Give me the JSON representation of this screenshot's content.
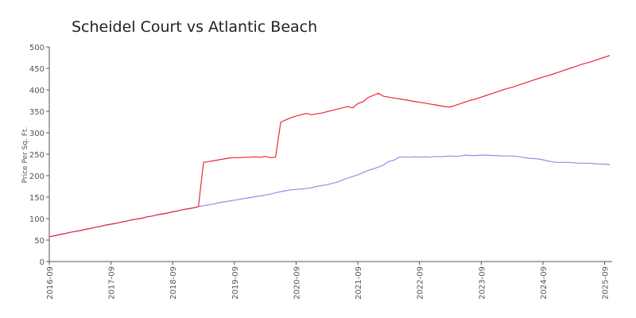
{
  "chart_data": {
    "type": "line",
    "title": "Scheidel Court vs Atlantic Beach",
    "y_label": "Price Per Sq. Ft.",
    "x": [
      "2016-09",
      "2016-10",
      "2016-11",
      "2016-12",
      "2017-01",
      "2017-02",
      "2017-03",
      "2017-04",
      "2017-05",
      "2017-06",
      "2017-07",
      "2017-08",
      "2017-09",
      "2017-10",
      "2017-11",
      "2017-12",
      "2018-01",
      "2018-02",
      "2018-03",
      "2018-04",
      "2018-05",
      "2018-06",
      "2018-07",
      "2018-08",
      "2018-09",
      "2018-10",
      "2018-11",
      "2018-12",
      "2019-01",
      "2019-02",
      "2019-03",
      "2019-04",
      "2019-05",
      "2019-06",
      "2019-07",
      "2019-08",
      "2019-09",
      "2019-10",
      "2019-11",
      "2019-12",
      "2020-01",
      "2020-02",
      "2020-03",
      "2020-04",
      "2020-05",
      "2020-06",
      "2020-07",
      "2020-08",
      "2020-09",
      "2020-10",
      "2020-11",
      "2020-12",
      "2021-01",
      "2021-02",
      "2021-03",
      "2021-04",
      "2021-05",
      "2021-06",
      "2021-07",
      "2021-08",
      "2021-09",
      "2021-10",
      "2021-11",
      "2021-12",
      "2022-01",
      "2022-02",
      "2022-03",
      "2022-04",
      "2022-05",
      "2022-06",
      "2022-07",
      "2022-08",
      "2022-09",
      "2022-10",
      "2022-11",
      "2022-12",
      "2023-01",
      "2023-02",
      "2023-03",
      "2023-04",
      "2023-05",
      "2023-06",
      "2023-07",
      "2023-08",
      "2023-09",
      "2023-10",
      "2023-11",
      "2023-12",
      "2024-01",
      "2024-02",
      "2024-03",
      "2024-04",
      "2024-05",
      "2024-06",
      "2024-07",
      "2024-08",
      "2024-09",
      "2024-10",
      "2024-11",
      "2024-12",
      "2025-01",
      "2025-02",
      "2025-03",
      "2025-04",
      "2025-05",
      "2025-06",
      "2025-07",
      "2025-08",
      "2025-09",
      "2025-10"
    ],
    "xticks": [
      "2016-09",
      "2017-09",
      "2018-09",
      "2019-09",
      "2020-09",
      "2021-09",
      "2022-09",
      "2023-09",
      "2024-09",
      "2025-09"
    ],
    "series": [
      {
        "color": "#e8283a",
        "values": [
          58,
          60,
          63,
          65,
          68,
          70,
          72,
          75,
          77,
          80,
          82,
          85,
          87,
          89,
          92,
          94,
          97,
          99,
          101,
          104,
          106,
          109,
          111,
          113,
          116,
          118,
          121,
          123,
          125,
          128,
          231,
          233,
          235,
          237,
          239,
          241,
          242,
          242,
          243,
          243,
          244,
          243,
          245,
          242,
          243,
          325,
          330,
          335,
          339,
          342,
          345,
          342,
          344,
          346,
          349,
          352,
          355,
          358,
          361,
          358,
          368,
          372,
          382,
          387,
          392,
          385,
          383,
          381,
          379,
          377,
          375,
          373,
          371,
          369,
          367,
          365,
          363,
          361,
          360,
          364,
          368,
          372,
          376,
          379,
          383,
          387,
          391,
          395,
          399,
          403,
          406,
          410,
          414,
          418,
          422,
          426,
          430,
          433,
          437,
          441,
          445,
          449,
          453,
          457,
          461,
          464,
          468,
          472,
          476,
          480
        ]
      },
      {
        "color": "#8f8fe8",
        "values": [
          58,
          60,
          63,
          65,
          68,
          70,
          72,
          75,
          77,
          80,
          82,
          85,
          87,
          89,
          92,
          94,
          97,
          99,
          101,
          104,
          106,
          109,
          111,
          113,
          116,
          118,
          121,
          123,
          125,
          128,
          130,
          132,
          134,
          137,
          139,
          141,
          143,
          145,
          147,
          149,
          151,
          153,
          155,
          157,
          160,
          163,
          165,
          167,
          168,
          169,
          170,
          172,
          175,
          177,
          179,
          182,
          185,
          190,
          194,
          198,
          202,
          207,
          212,
          216,
          220,
          225,
          233,
          236,
          243,
          244,
          243,
          244,
          243,
          244,
          243,
          245,
          244,
          245,
          246,
          245,
          246,
          248,
          247,
          247,
          248,
          248,
          247,
          247,
          246,
          246,
          246,
          245,
          243,
          241,
          240,
          239,
          237,
          234,
          232,
          231,
          231,
          231,
          230,
          229,
          229,
          229,
          228,
          227,
          227,
          226
        ]
      }
    ],
    "ylim": [
      0,
      500
    ],
    "yticks": [
      0,
      50,
      100,
      150,
      200,
      250,
      300,
      350,
      400,
      450,
      500
    ]
  }
}
